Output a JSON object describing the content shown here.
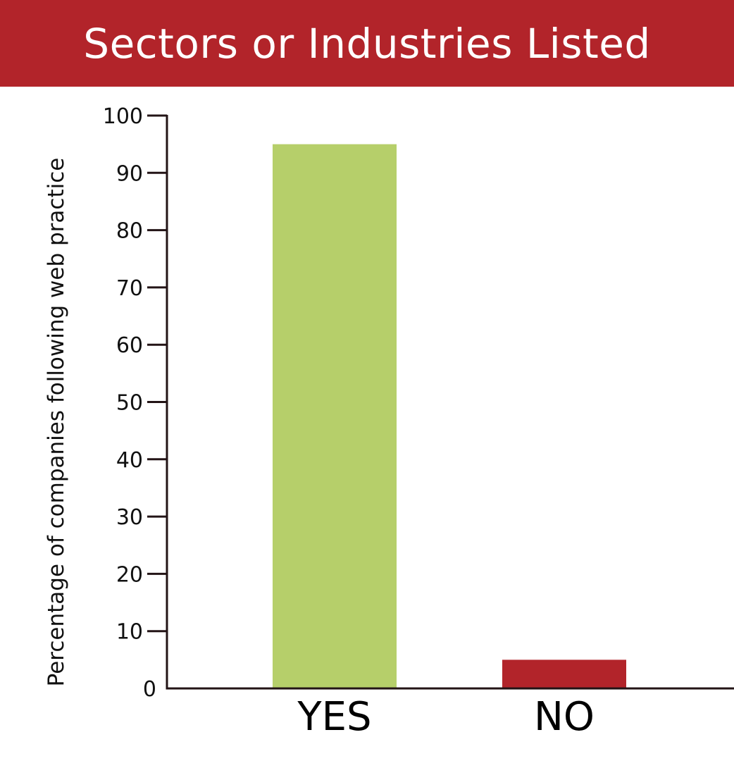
{
  "colors": {
    "header_bg": "#b2242a",
    "header_text": "#ffffff",
    "axis": "#231416",
    "text": "#111111"
  },
  "chart_data": {
    "type": "bar",
    "title": "Sectors or Industries Listed",
    "xlabel": "",
    "ylabel": "Percentage of companies following web practice",
    "categories": [
      "YES",
      "NO"
    ],
    "values": [
      95,
      5
    ],
    "bar_colors": [
      "#b6cf6a",
      "#b2242a"
    ],
    "ylim": [
      0,
      100
    ],
    "yticks": [
      0,
      10,
      20,
      30,
      40,
      50,
      60,
      70,
      80,
      90,
      100
    ],
    "grid": false,
    "legend": "none"
  }
}
